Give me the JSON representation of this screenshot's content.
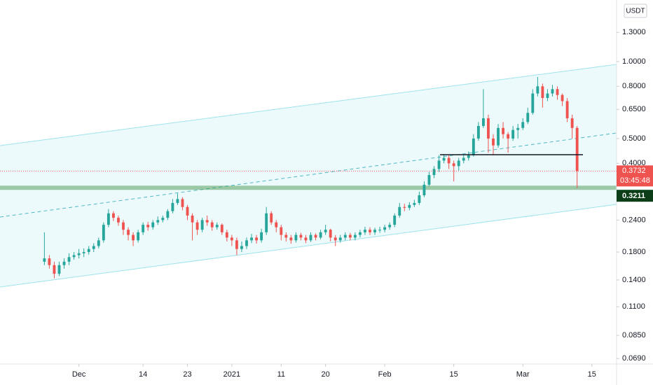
{
  "chart_data": {
    "type": "candlestick",
    "currency": "USDT",
    "log_scale": true,
    "grid": false,
    "x": [
      "2020-11-24",
      "2020-11-25",
      "2020-11-26",
      "2020-11-27",
      "2020-11-28",
      "2020-11-29",
      "2020-11-30",
      "2020-12-01",
      "2020-12-02",
      "2020-12-03",
      "2020-12-04",
      "2020-12-05",
      "2020-12-06",
      "2020-12-07",
      "2020-12-08",
      "2020-12-09",
      "2020-12-10",
      "2020-12-11",
      "2020-12-12",
      "2020-12-13",
      "2020-12-14",
      "2020-12-15",
      "2020-12-16",
      "2020-12-17",
      "2020-12-18",
      "2020-12-19",
      "2020-12-20",
      "2020-12-21",
      "2020-12-22",
      "2020-12-23",
      "2020-12-24",
      "2020-12-25",
      "2020-12-26",
      "2020-12-27",
      "2020-12-28",
      "2020-12-29",
      "2020-12-30",
      "2020-12-31",
      "2021-01-01",
      "2021-01-02",
      "2021-01-03",
      "2021-01-04",
      "2021-01-05",
      "2021-01-06",
      "2021-01-07",
      "2021-01-08",
      "2021-01-09",
      "2021-01-10",
      "2021-01-11",
      "2021-01-12",
      "2021-01-13",
      "2021-01-14",
      "2021-01-15",
      "2021-01-16",
      "2021-01-17",
      "2021-01-18",
      "2021-01-19",
      "2021-01-20",
      "2021-01-21",
      "2021-01-22",
      "2021-01-23",
      "2021-01-24",
      "2021-01-25",
      "2021-01-26",
      "2021-01-27",
      "2021-01-28",
      "2021-01-29",
      "2021-01-30",
      "2021-01-31",
      "2021-02-01",
      "2021-02-02",
      "2021-02-03",
      "2021-02-04",
      "2021-02-05",
      "2021-02-06",
      "2021-02-07",
      "2021-02-08",
      "2021-02-09",
      "2021-02-10",
      "2021-02-11",
      "2021-02-12",
      "2021-02-13",
      "2021-02-14",
      "2021-02-15",
      "2021-02-16",
      "2021-02-17",
      "2021-02-18",
      "2021-02-19",
      "2021-02-20",
      "2021-02-21",
      "2021-02-22",
      "2021-02-23",
      "2021-02-24",
      "2021-02-25",
      "2021-02-26",
      "2021-02-27",
      "2021-02-28",
      "2021-03-01",
      "2021-03-02",
      "2021-03-03",
      "2021-03-04",
      "2021-03-05",
      "2021-03-06",
      "2021-03-07",
      "2021-03-08",
      "2021-03-09",
      "2021-03-10",
      "2021-03-11",
      "2021-03-12"
    ],
    "open": [
      0.165,
      0.17,
      0.16,
      0.148,
      0.16,
      0.165,
      0.172,
      0.175,
      0.178,
      0.18,
      0.185,
      0.19,
      0.2,
      0.23,
      0.255,
      0.245,
      0.235,
      0.22,
      0.21,
      0.2,
      0.215,
      0.23,
      0.225,
      0.235,
      0.24,
      0.245,
      0.26,
      0.28,
      0.29,
      0.27,
      0.25,
      0.235,
      0.22,
      0.24,
      0.235,
      0.225,
      0.23,
      0.215,
      0.205,
      0.2,
      0.185,
      0.19,
      0.2,
      0.205,
      0.2,
      0.215,
      0.255,
      0.235,
      0.225,
      0.21,
      0.205,
      0.2,
      0.21,
      0.205,
      0.2,
      0.21,
      0.205,
      0.215,
      0.22,
      0.205,
      0.2,
      0.205,
      0.21,
      0.205,
      0.21,
      0.215,
      0.22,
      0.215,
      0.22,
      0.22,
      0.225,
      0.23,
      0.25,
      0.27,
      0.268,
      0.275,
      0.28,
      0.3,
      0.33,
      0.36,
      0.38,
      0.41,
      0.42,
      0.4,
      0.39,
      0.41,
      0.42,
      0.43,
      0.5,
      0.56,
      0.6,
      0.5,
      0.47,
      0.55,
      0.52,
      0.5,
      0.54,
      0.55,
      0.58,
      0.63,
      0.75,
      0.8,
      0.72,
      0.75,
      0.78,
      0.74,
      0.7,
      0.6,
      0.55
    ],
    "high": [
      0.215,
      0.175,
      0.165,
      0.165,
      0.17,
      0.178,
      0.18,
      0.185,
      0.186,
      0.19,
      0.195,
      0.205,
      0.235,
      0.265,
      0.26,
      0.25,
      0.24,
      0.225,
      0.215,
      0.22,
      0.235,
      0.236,
      0.24,
      0.248,
      0.25,
      0.265,
      0.29,
      0.305,
      0.295,
      0.275,
      0.255,
      0.24,
      0.245,
      0.25,
      0.24,
      0.235,
      0.233,
      0.22,
      0.21,
      0.205,
      0.198,
      0.205,
      0.212,
      0.21,
      0.222,
      0.27,
      0.26,
      0.24,
      0.23,
      0.215,
      0.21,
      0.215,
      0.214,
      0.21,
      0.215,
      0.213,
      0.22,
      0.23,
      0.222,
      0.21,
      0.21,
      0.215,
      0.214,
      0.215,
      0.22,
      0.226,
      0.225,
      0.224,
      0.226,
      0.23,
      0.235,
      0.255,
      0.28,
      0.278,
      0.282,
      0.288,
      0.31,
      0.34,
      0.37,
      0.39,
      0.43,
      0.435,
      0.43,
      0.41,
      0.42,
      0.43,
      0.445,
      0.52,
      0.58,
      0.78,
      0.62,
      0.52,
      0.57,
      0.58,
      0.53,
      0.56,
      0.57,
      0.6,
      0.66,
      0.78,
      0.87,
      0.82,
      0.78,
      0.81,
      0.8,
      0.75,
      0.72,
      0.62,
      0.56
    ],
    "low": [
      0.16,
      0.155,
      0.142,
      0.145,
      0.155,
      0.16,
      0.168,
      0.17,
      0.172,
      0.176,
      0.18,
      0.186,
      0.196,
      0.225,
      0.238,
      0.228,
      0.21,
      0.2,
      0.19,
      0.196,
      0.21,
      0.218,
      0.22,
      0.23,
      0.235,
      0.24,
      0.255,
      0.275,
      0.262,
      0.24,
      0.2,
      0.21,
      0.215,
      0.228,
      0.218,
      0.22,
      0.21,
      0.198,
      0.19,
      0.175,
      0.18,
      0.185,
      0.195,
      0.194,
      0.196,
      0.21,
      0.23,
      0.215,
      0.2,
      0.198,
      0.194,
      0.196,
      0.2,
      0.195,
      0.197,
      0.2,
      0.202,
      0.21,
      0.198,
      0.19,
      0.196,
      0.2,
      0.2,
      0.2,
      0.205,
      0.21,
      0.21,
      0.21,
      0.214,
      0.215,
      0.22,
      0.225,
      0.245,
      0.26,
      0.262,
      0.27,
      0.275,
      0.295,
      0.325,
      0.35,
      0.37,
      0.4,
      0.38,
      0.34,
      0.375,
      0.4,
      0.41,
      0.425,
      0.49,
      0.55,
      0.44,
      0.43,
      0.46,
      0.5,
      0.44,
      0.49,
      0.5,
      0.54,
      0.57,
      0.62,
      0.73,
      0.66,
      0.7,
      0.73,
      0.71,
      0.67,
      0.58,
      0.5,
      0.32
    ],
    "close": [
      0.17,
      0.16,
      0.148,
      0.16,
      0.165,
      0.172,
      0.175,
      0.178,
      0.18,
      0.185,
      0.19,
      0.2,
      0.23,
      0.255,
      0.245,
      0.235,
      0.22,
      0.21,
      0.2,
      0.215,
      0.23,
      0.225,
      0.235,
      0.24,
      0.245,
      0.26,
      0.28,
      0.29,
      0.27,
      0.25,
      0.235,
      0.22,
      0.24,
      0.235,
      0.225,
      0.23,
      0.215,
      0.205,
      0.2,
      0.185,
      0.19,
      0.2,
      0.205,
      0.2,
      0.215,
      0.255,
      0.235,
      0.225,
      0.21,
      0.205,
      0.2,
      0.21,
      0.205,
      0.2,
      0.21,
      0.205,
      0.215,
      0.22,
      0.205,
      0.2,
      0.205,
      0.21,
      0.205,
      0.21,
      0.215,
      0.22,
      0.215,
      0.22,
      0.22,
      0.225,
      0.23,
      0.25,
      0.27,
      0.268,
      0.275,
      0.28,
      0.3,
      0.33,
      0.36,
      0.38,
      0.41,
      0.42,
      0.4,
      0.39,
      0.41,
      0.42,
      0.43,
      0.5,
      0.56,
      0.6,
      0.5,
      0.47,
      0.55,
      0.52,
      0.5,
      0.54,
      0.55,
      0.58,
      0.63,
      0.75,
      0.8,
      0.72,
      0.75,
      0.78,
      0.74,
      0.7,
      0.6,
      0.55,
      0.3732
    ],
    "up_color": "#26a69a",
    "down_color": "#ef5350",
    "last_price": {
      "value": 0.3732,
      "label": "0.3732"
    },
    "countdown": "03:45:48",
    "level": {
      "value": 0.3211,
      "label": "0.3211"
    },
    "xlim": [
      "2020-11-15",
      "2021-03-20"
    ],
    "xticks": [
      {
        "value": "2020-12-01",
        "label": "Dec"
      },
      {
        "value": "2020-12-14",
        "label": "14"
      },
      {
        "value": "2020-12-23",
        "label": "23"
      },
      {
        "value": "2021-01-01",
        "label": "2021"
      },
      {
        "value": "2021-01-11",
        "label": "11"
      },
      {
        "value": "2021-01-20",
        "label": "20"
      },
      {
        "value": "2021-02-01",
        "label": "Feb"
      },
      {
        "value": "2021-02-15",
        "label": "15"
      },
      {
        "value": "2021-03-01",
        "label": "Mar"
      },
      {
        "value": "2021-03-15",
        "label": "15"
      }
    ],
    "ylim": [
      0.0657,
      1.74
    ],
    "yticks": [
      {
        "value": 1.3,
        "label": "1.3000"
      },
      {
        "value": 1.0,
        "label": "1.0000"
      },
      {
        "value": 0.8,
        "label": "0.8000"
      },
      {
        "value": 0.65,
        "label": "0.6500"
      },
      {
        "value": 0.5,
        "label": "0.5000"
      },
      {
        "value": 0.4,
        "label": "0.4000"
      },
      {
        "value": 0.24,
        "label": "0.2400"
      },
      {
        "value": 0.18,
        "label": "0.1800"
      },
      {
        "value": 0.14,
        "label": "0.1400"
      },
      {
        "value": 0.11,
        "label": "0.1100"
      },
      {
        "value": 0.085,
        "label": "0.0850"
      },
      {
        "value": 0.069,
        "label": "0.0690"
      }
    ]
  }
}
